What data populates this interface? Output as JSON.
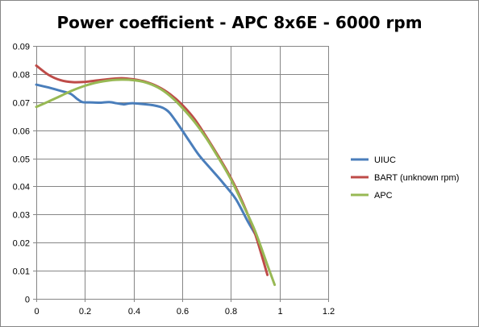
{
  "chart_data": {
    "type": "line",
    "title": "Power coefficient - APC 8x6E - 6000 rpm",
    "xlabel": "",
    "ylabel": "",
    "xlim": [
      0,
      1.2
    ],
    "ylim": [
      0,
      0.09
    ],
    "x_ticks": [
      "0",
      "0.2",
      "0.4",
      "0.6",
      "0.8",
      "1",
      "1.2"
    ],
    "y_ticks": [
      "0",
      "0.01",
      "0.02",
      "0.03",
      "0.04",
      "0.05",
      "0.06",
      "0.07",
      "0.08",
      "0.09"
    ],
    "grid": "horizontal and vertical",
    "legend_position": "right",
    "series": [
      {
        "name": "UIUC",
        "color": "#4a7ebb",
        "x": [
          0.0,
          0.05,
          0.1,
          0.14,
          0.17,
          0.19,
          0.22,
          0.26,
          0.3,
          0.33,
          0.36,
          0.38,
          0.4,
          0.44,
          0.48,
          0.51,
          0.53,
          0.55,
          0.59,
          0.63,
          0.67,
          0.72,
          0.77,
          0.82,
          0.87,
          0.9
        ],
        "y": [
          0.0762,
          0.0752,
          0.074,
          0.073,
          0.071,
          0.07,
          0.0699,
          0.0698,
          0.07,
          0.0696,
          0.0692,
          0.0695,
          0.0696,
          0.0693,
          0.0689,
          0.0683,
          0.0675,
          0.066,
          0.0612,
          0.056,
          0.051,
          0.046,
          0.041,
          0.0355,
          0.0275,
          0.023
        ]
      },
      {
        "name": "BART (unknown rpm)",
        "color": "#be4b48",
        "x": [
          0.0,
          0.05,
          0.1,
          0.15,
          0.2,
          0.25,
          0.3,
          0.35,
          0.4,
          0.45,
          0.5,
          0.55,
          0.6,
          0.65,
          0.7,
          0.75,
          0.8,
          0.85,
          0.9,
          0.95
        ],
        "y": [
          0.083,
          0.0797,
          0.0778,
          0.0771,
          0.0772,
          0.0777,
          0.0782,
          0.0785,
          0.0781,
          0.0772,
          0.0755,
          0.0728,
          0.069,
          0.064,
          0.0575,
          0.0505,
          0.043,
          0.034,
          0.023,
          0.0085
        ]
      },
      {
        "name": "APC",
        "color": "#98b954",
        "x": [
          0.0,
          0.05,
          0.1,
          0.15,
          0.2,
          0.25,
          0.3,
          0.35,
          0.4,
          0.45,
          0.5,
          0.55,
          0.6,
          0.65,
          0.7,
          0.75,
          0.8,
          0.85,
          0.9,
          0.95,
          0.98
        ],
        "y": [
          0.0683,
          0.0702,
          0.0722,
          0.0742,
          0.0758,
          0.077,
          0.0777,
          0.078,
          0.0778,
          0.077,
          0.0752,
          0.0722,
          0.068,
          0.063,
          0.057,
          0.05,
          0.0425,
          0.0335,
          0.024,
          0.012,
          0.005
        ]
      }
    ]
  }
}
